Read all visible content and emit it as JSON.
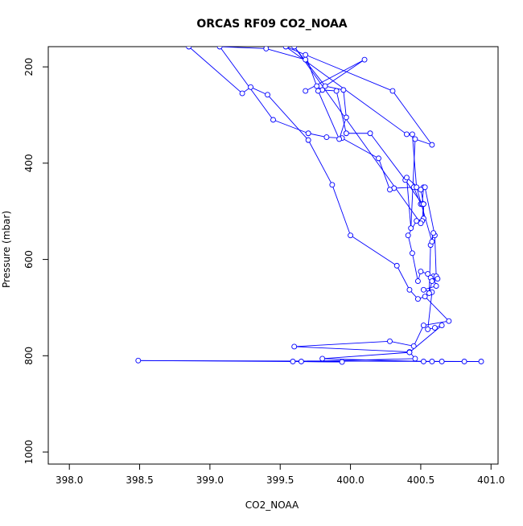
{
  "chart_data": {
    "type": "line",
    "title": "ORCAS RF09 CO2_NOAA",
    "xlabel": "CO2_NOAA",
    "ylabel": "Pressure (mbar)",
    "xlim": [
      397.85,
      401.05
    ],
    "ylim": [
      1025,
      158
    ],
    "y_reversed": true,
    "x_ticks": [
      398.0,
      398.5,
      399.0,
      399.5,
      400.0,
      400.5,
      401.0
    ],
    "x_tick_labels": [
      "398.0",
      "398.5",
      "399.0",
      "399.5",
      "400.0",
      "400.5",
      "401.0"
    ],
    "y_ticks": [
      200,
      400,
      600,
      800,
      1000
    ],
    "y_tick_labels": [
      "200",
      "400",
      "600",
      "800",
      "1000"
    ],
    "grid": false,
    "series_color": "#0000ff",
    "x": [
      398.85,
      399.23,
      399.29,
      399.41,
      399.7,
      399.87,
      400.0,
      400.33,
      400.42,
      400.48,
      400.53,
      400.7,
      400.52,
      400.45,
      400.28,
      399.6,
      400.42,
      400.46,
      399.65,
      399.94,
      399.59,
      398.49,
      400.93,
      400.81,
      400.65,
      400.58,
      400.52,
      399.8,
      400.42,
      400.65,
      400.6,
      400.55,
      400.58,
      400.52,
      400.61,
      400.59,
      400.57,
      400.55,
      400.5,
      400.48,
      400.44,
      400.41,
      400.47,
      400.52,
      400.52,
      400.5,
      400.45,
      400.31,
      400.28,
      400.2,
      399.94,
      399.83,
      399.7,
      399.45,
      399.07,
      399.4,
      399.68,
      399.68,
      399.76,
      399.8,
      399.9,
      399.97,
      400.14,
      400.39,
      400.51,
      400.52,
      400.53,
      400.6,
      400.61,
      400.62,
      400.58,
      400.56,
      400.57,
      400.59,
      400.58,
      400.47,
      400.44,
      400.4,
      399.54,
      400.3,
      400.58,
      400.46,
      400.43,
      400.4,
      400.5,
      400.52,
      400.51,
      400.5,
      399.6,
      399.82,
      399.95,
      399.97,
      399.92,
      399.77,
      400.1,
      399.68
    ],
    "y": [
      158,
      255,
      242,
      258,
      352,
      445,
      550,
      613,
      663,
      682,
      677,
      728,
      737,
      780,
      770,
      781,
      792,
      806,
      812,
      813,
      812,
      810,
      812,
      812,
      812,
      812,
      812,
      806,
      793,
      737,
      742,
      745,
      668,
      663,
      655,
      635,
      638,
      630,
      625,
      645,
      587,
      550,
      520,
      515,
      485,
      485,
      450,
      452,
      455,
      390,
      348,
      346,
      338,
      310,
      158,
      162,
      185,
      175,
      240,
      248,
      250,
      338,
      338,
      435,
      485,
      450,
      450,
      550,
      635,
      640,
      645,
      670,
      570,
      545,
      563,
      450,
      340,
      340,
      158,
      250,
      362,
      350,
      535,
      430,
      455,
      485,
      520,
      525,
      158,
      240,
      248,
      305,
      350,
      250,
      185,
      250
    ]
  }
}
